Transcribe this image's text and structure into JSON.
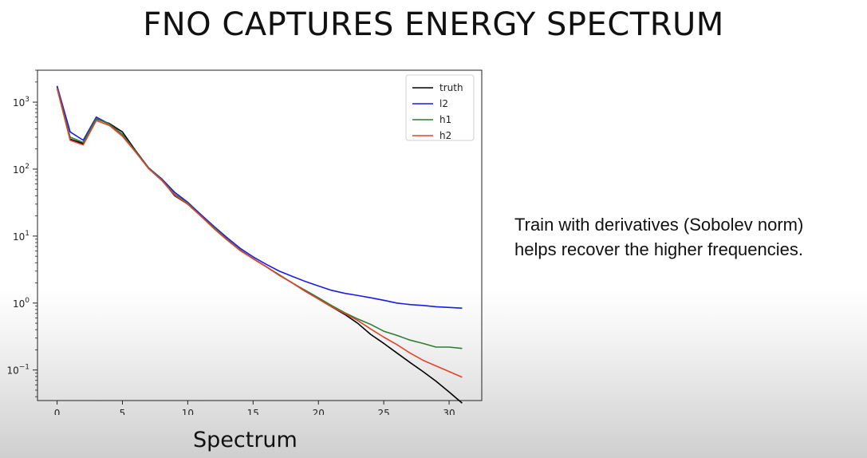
{
  "slide": {
    "title": "FNO CAPTURES ENERGY SPECTRUM",
    "caption": "Spectrum",
    "side_text": [
      "Train with derivatives (Sobolev norm)",
      "helps recover the higher frequencies."
    ]
  },
  "chart_data": {
    "type": "line",
    "title": "",
    "xlabel": "",
    "ylabel": "",
    "yscale": "log",
    "xlim": [
      -1.5,
      32.5
    ],
    "ylim": [
      0.035,
      3000
    ],
    "grid": false,
    "legend_position": "top-right",
    "x_ticks": [
      0,
      5,
      10,
      15,
      20,
      25,
      30
    ],
    "y_ticks": [
      {
        "value": 1000,
        "base": "10",
        "exp": "3"
      },
      {
        "value": 100,
        "base": "10",
        "exp": "2"
      },
      {
        "value": 10,
        "base": "10",
        "exp": "1"
      },
      {
        "value": 1,
        "base": "10",
        "exp": "0"
      },
      {
        "value": 0.1,
        "base": "10",
        "exp": "−1"
      }
    ],
    "x": [
      0,
      1,
      2,
      3,
      4,
      5,
      6,
      7,
      8,
      9,
      10,
      11,
      12,
      13,
      14,
      15,
      16,
      17,
      18,
      19,
      20,
      21,
      22,
      23,
      24,
      25,
      26,
      27,
      28,
      29,
      30,
      31
    ],
    "series": [
      {
        "name": "truth",
        "color": "#000000",
        "values": [
          1700,
          280,
          240,
          560,
          480,
          360,
          190,
          105,
          70,
          40,
          30,
          20,
          13,
          8.8,
          6.2,
          4.6,
          3.5,
          2.6,
          2.0,
          1.5,
          1.15,
          0.88,
          0.68,
          0.5,
          0.34,
          0.25,
          0.18,
          0.13,
          0.095,
          0.068,
          0.047,
          0.032
        ]
      },
      {
        "name": "l2",
        "color": "#1a1aee",
        "values": [
          1750,
          360,
          270,
          600,
          470,
          330,
          185,
          105,
          72,
          45,
          32,
          21,
          14,
          9.5,
          6.6,
          4.9,
          3.8,
          3.0,
          2.5,
          2.1,
          1.8,
          1.55,
          1.4,
          1.3,
          1.2,
          1.1,
          1.0,
          0.95,
          0.92,
          0.88,
          0.86,
          0.84
        ]
      },
      {
        "name": "h1",
        "color": "#2e7d32",
        "values": [
          1650,
          300,
          250,
          570,
          470,
          330,
          185,
          104,
          70,
          42,
          31,
          20,
          13.5,
          9,
          6.2,
          4.6,
          3.5,
          2.65,
          2.0,
          1.55,
          1.2,
          0.92,
          0.72,
          0.58,
          0.48,
          0.38,
          0.33,
          0.28,
          0.25,
          0.22,
          0.22,
          0.21
        ]
      },
      {
        "name": "h2",
        "color": "#e0442a",
        "values": [
          1600,
          270,
          230,
          530,
          450,
          310,
          180,
          102,
          68,
          41,
          30,
          20,
          13,
          8.8,
          6.1,
          4.6,
          3.5,
          2.6,
          2.0,
          1.5,
          1.15,
          0.88,
          0.7,
          0.55,
          0.41,
          0.31,
          0.24,
          0.18,
          0.14,
          0.115,
          0.095,
          0.078
        ]
      }
    ]
  }
}
